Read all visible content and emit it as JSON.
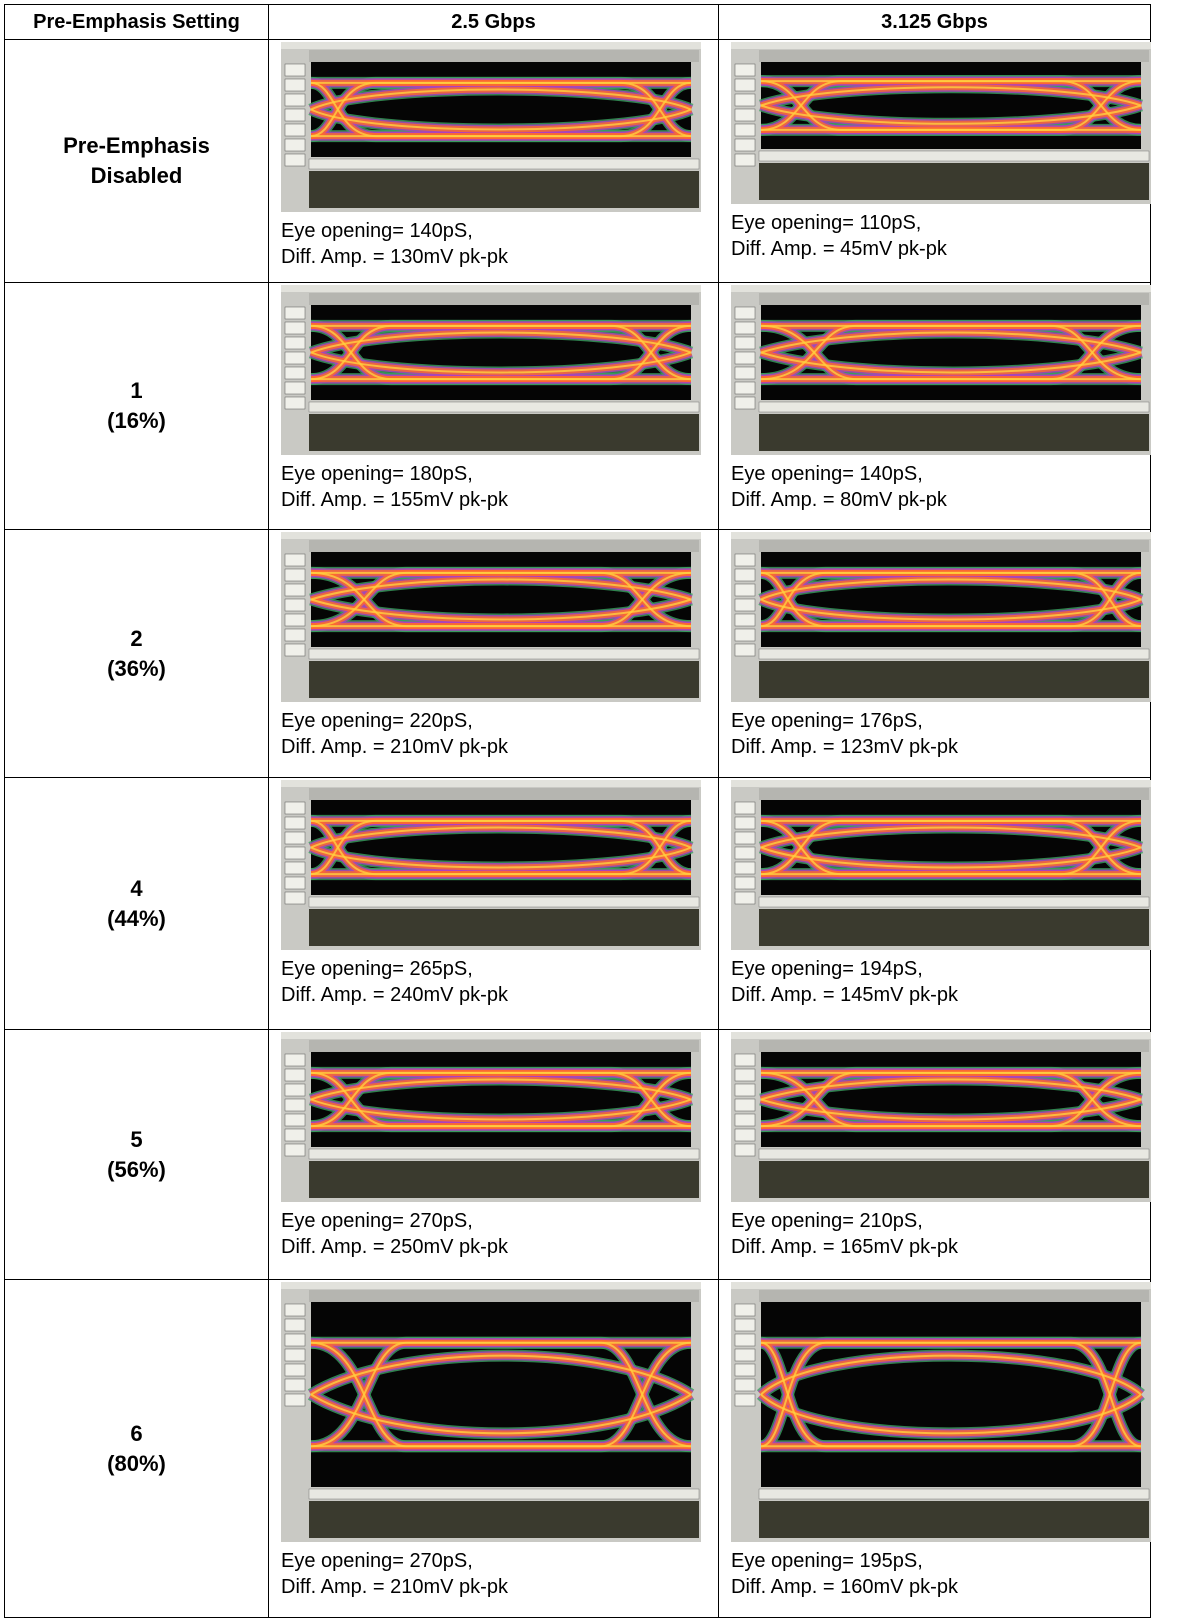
{
  "table": {
    "header": [
      "Pre-Emphasis Setting",
      "2.5 Gbps",
      "3.125 Gbps"
    ],
    "rows": [
      {
        "setting": [
          "Pre-Emphasis",
          "Disabled"
        ],
        "cells": [
          [
            "Eye opening= 140pS,",
            "Diff. Amp. = 130mV pk-pk"
          ],
          [
            "Eye opening= 110pS,",
            "Diff. Amp. = 45mV pk-pk"
          ]
        ]
      },
      {
        "setting": [
          "1",
          "(16%)"
        ],
        "cells": [
          [
            "Eye opening= 180pS,",
            "Diff. Amp. = 155mV pk-pk"
          ],
          [
            "Eye opening= 140pS,",
            "Diff. Amp. = 80mV pk-pk"
          ]
        ]
      },
      {
        "setting": [
          "2",
          "(36%)"
        ],
        "cells": [
          [
            "Eye opening= 220pS,",
            "Diff. Amp. = 210mV pk-pk"
          ],
          [
            "Eye opening= 176pS,",
            "Diff. Amp. = 123mV pk-pk"
          ]
        ]
      },
      {
        "setting": [
          "4",
          "(44%)"
        ],
        "cells": [
          [
            "Eye opening= 265pS,",
            "Diff. Amp. = 240mV pk-pk"
          ],
          [
            "Eye opening= 194pS,",
            "Diff. Amp. = 145mV pk-pk"
          ]
        ]
      },
      {
        "setting": [
          "5",
          "(56%)"
        ],
        "cells": [
          [
            "Eye opening= 270pS,",
            "Diff. Amp. = 250mV pk-pk"
          ],
          [
            "Eye opening= 210pS,",
            "Diff. Amp. = 165mV pk-pk"
          ]
        ]
      },
      {
        "setting": [
          "6",
          "(80%)"
        ],
        "cells": [
          [
            "Eye opening= 270pS,",
            "Diff. Amp. = 210mV pk-pk"
          ],
          [
            "Eye opening= 195pS,",
            "Diff. Amp. = 160mV pk-pk"
          ]
        ]
      }
    ]
  }
}
